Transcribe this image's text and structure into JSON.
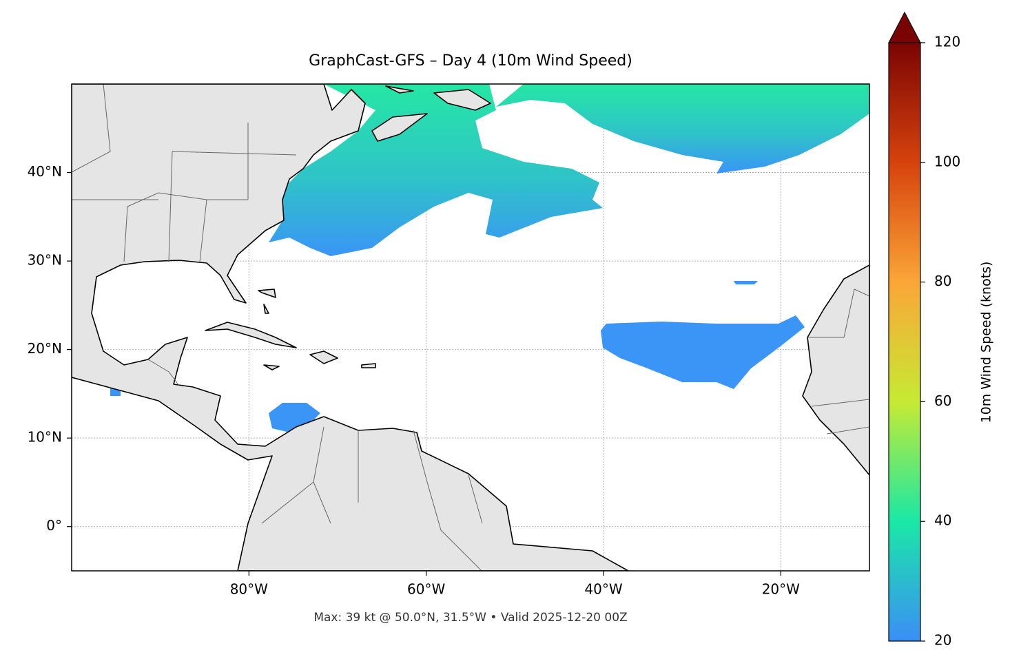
{
  "map": {
    "title": "GraphCast-GFS – Day 4 (10m Wind Speed)",
    "footer": "Max: 39 kt @ 50.0°N, 31.5°W • Valid 2025-12-20 00Z",
    "xlim": [
      -100,
      -10
    ],
    "ylim": [
      -5,
      50
    ],
    "xticks": [
      {
        "value": -80,
        "label": "80°W"
      },
      {
        "value": -60,
        "label": "60°W"
      },
      {
        "value": -40,
        "label": "40°W"
      },
      {
        "value": -20,
        "label": "20°W"
      }
    ],
    "yticks": [
      {
        "value": 0,
        "label": "0°"
      },
      {
        "value": 10,
        "label": "10°N"
      },
      {
        "value": 20,
        "label": "20°N"
      },
      {
        "value": 30,
        "label": "30°N"
      },
      {
        "value": 40,
        "label": "40°N"
      }
    ],
    "grid": true,
    "colorbar": {
      "label": "10m Wind Speed (knots)",
      "lim": [
        20,
        120
      ],
      "ticks": [
        20,
        40,
        60,
        80,
        100,
        120
      ],
      "colors": [
        "#3b8ef6",
        "#1ae8a6",
        "#c6ea33",
        "#fba638",
        "#d6420d",
        "#7a0403"
      ],
      "extend": "max"
    }
  }
}
